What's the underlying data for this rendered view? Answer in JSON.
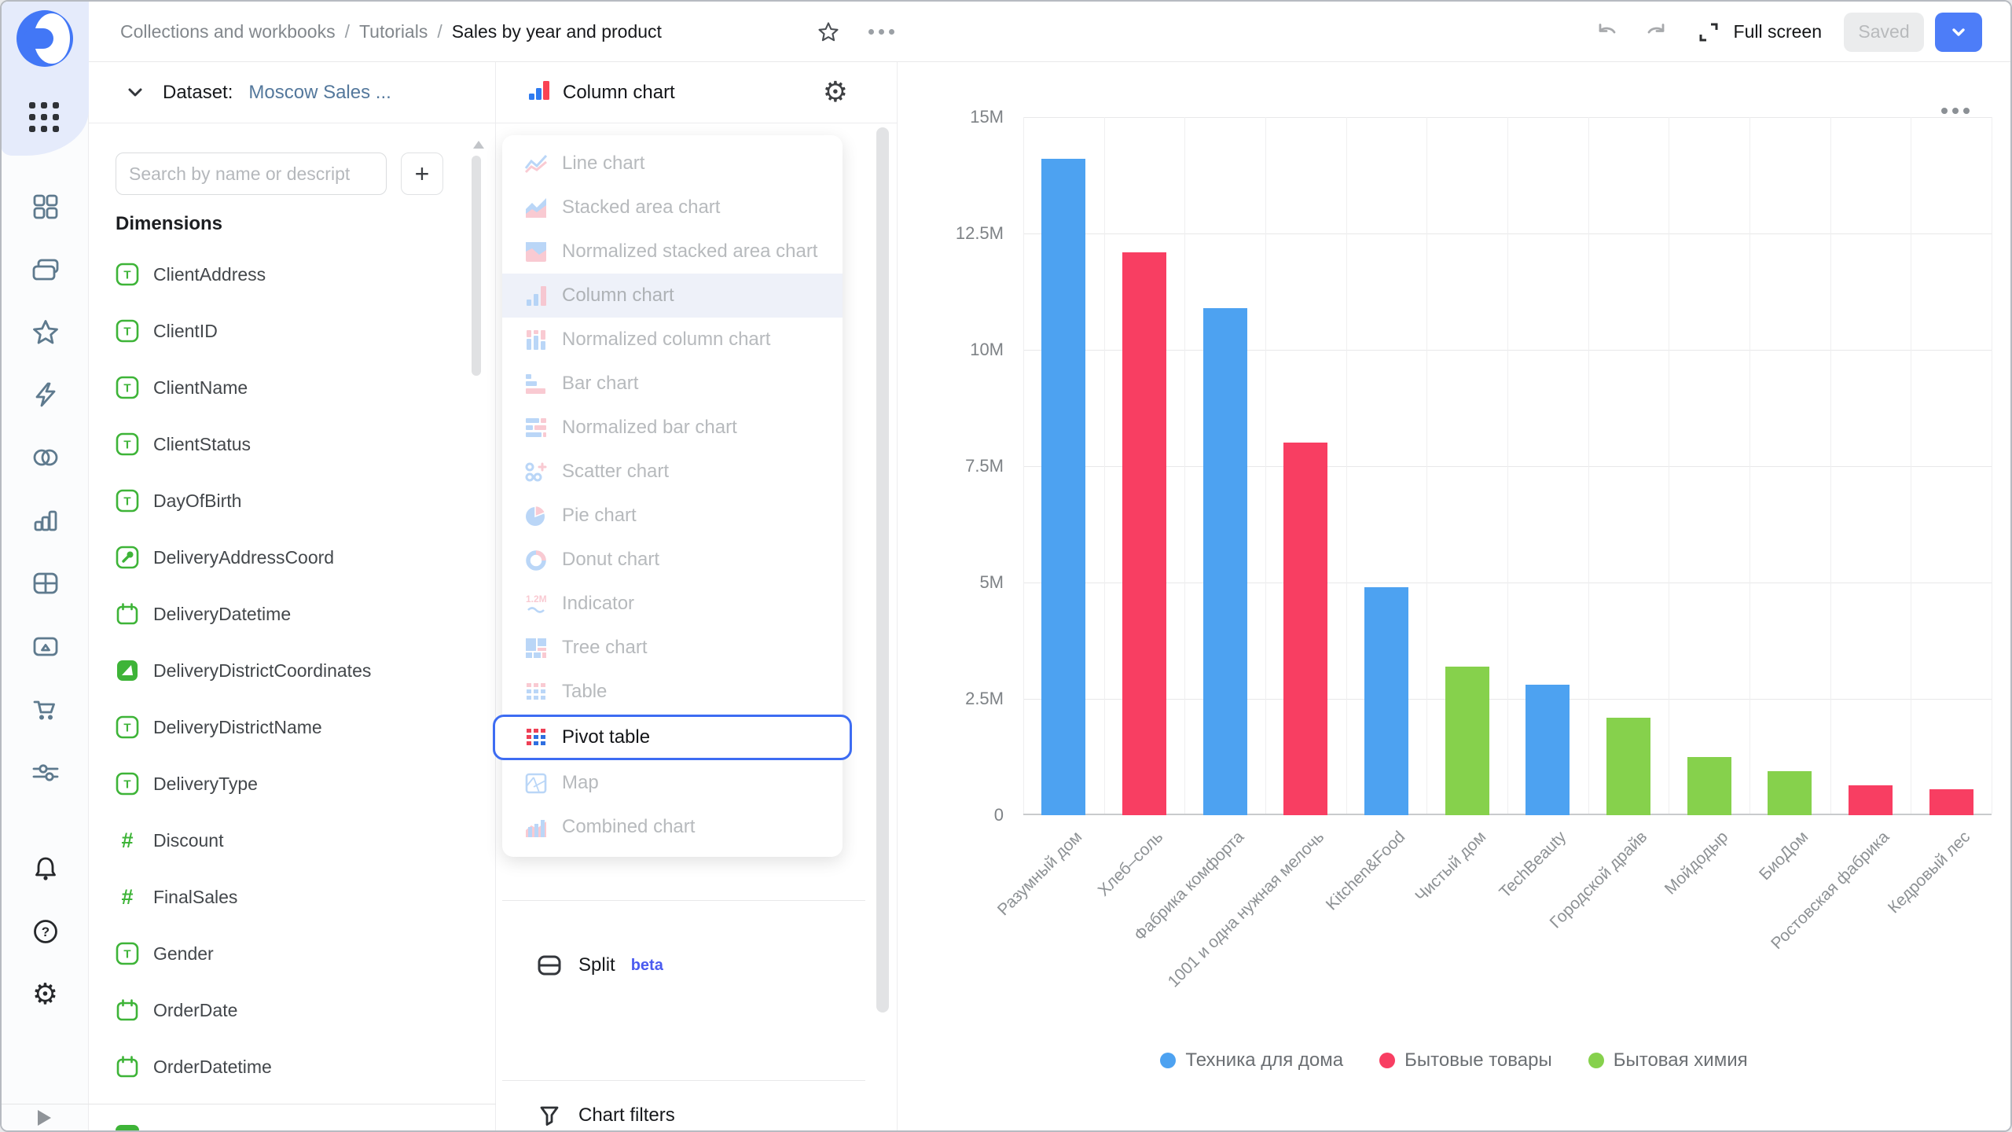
{
  "header": {
    "breadcrumbs": [
      "Collections and workbooks",
      "Tutorials",
      "Sales by year and product"
    ],
    "actions": {
      "full_screen_label": "Full screen",
      "saved_label": "Saved"
    }
  },
  "sidebar": {
    "icons": [
      "datalens-logo",
      "apps-grid",
      "dashboards",
      "collections",
      "favorites",
      "lightning",
      "venn-circles",
      "bar-chart",
      "table-grid",
      "folder-media",
      "cart",
      "sliders",
      "bell",
      "help",
      "gear",
      "expand-play"
    ]
  },
  "dataset_panel": {
    "collapse_label": "Dataset:",
    "dataset_name": "Moscow Sales ...",
    "search_placeholder": "Search by name or descript",
    "add_button_label": "+",
    "dimensions_title": "Dimensions",
    "fields": [
      {
        "name": "ClientAddress",
        "type": "string"
      },
      {
        "name": "ClientID",
        "type": "string"
      },
      {
        "name": "ClientName",
        "type": "string"
      },
      {
        "name": "ClientStatus",
        "type": "string"
      },
      {
        "name": "DayOfBirth",
        "type": "string"
      },
      {
        "name": "DeliveryAddressCoord",
        "type": "geopoint"
      },
      {
        "name": "DeliveryDatetime",
        "type": "date"
      },
      {
        "name": "DeliveryDistrictCoordinates",
        "type": "geopolygon"
      },
      {
        "name": "DeliveryDistrictName",
        "type": "string"
      },
      {
        "name": "DeliveryType",
        "type": "string"
      },
      {
        "name": "Discount",
        "type": "number"
      },
      {
        "name": "FinalSales",
        "type": "number"
      },
      {
        "name": "Gender",
        "type": "string"
      },
      {
        "name": "OrderDate",
        "type": "date"
      },
      {
        "name": "OrderDatetime",
        "type": "date"
      }
    ]
  },
  "viz_panel": {
    "selected_chart": "Column chart",
    "menu": [
      {
        "label": "Line chart",
        "type": "line",
        "state": "muted"
      },
      {
        "label": "Stacked area chart",
        "type": "area",
        "state": "muted"
      },
      {
        "label": "Normalized stacked area chart",
        "type": "narea",
        "state": "muted"
      },
      {
        "label": "Column chart",
        "type": "column",
        "state": "selected"
      },
      {
        "label": "Normalized column chart",
        "type": "ncolumn",
        "state": "muted"
      },
      {
        "label": "Bar chart",
        "type": "bar",
        "state": "muted"
      },
      {
        "label": "Normalized bar chart",
        "type": "nbar",
        "state": "muted"
      },
      {
        "label": "Scatter chart",
        "type": "scatter",
        "state": "muted"
      },
      {
        "label": "Pie chart",
        "type": "pie",
        "state": "muted"
      },
      {
        "label": "Donut chart",
        "type": "donut",
        "state": "muted"
      },
      {
        "label": "Indicator",
        "type": "indicator",
        "state": "muted"
      },
      {
        "label": "Tree chart",
        "type": "tree",
        "state": "muted"
      },
      {
        "label": "Table",
        "type": "table",
        "state": "muted"
      },
      {
        "label": "Pivot table",
        "type": "pivot",
        "state": "focused"
      },
      {
        "label": "Map",
        "type": "map",
        "state": "muted"
      },
      {
        "label": "Combined chart",
        "type": "combined",
        "state": "muted"
      }
    ],
    "split_label": "Split",
    "split_badge": "beta",
    "chart_filters_label": "Chart filters"
  },
  "chart_data": {
    "type": "bar",
    "title": "",
    "xlabel": "",
    "ylabel": "",
    "categories": [
      "Разумный дом",
      "Хлеб–соль",
      "Фабрика комфорта",
      "1001 и одна нужная мелочь",
      "Kitchen&Food",
      "Чистый дом",
      "TechBeauty",
      "Городской драйв",
      "Мойдодыр",
      "БиоДом",
      "Ростовская фабрика",
      "Кедровый лес"
    ],
    "values": [
      14.1,
      12.1,
      10.9,
      8.0,
      4.9,
      3.2,
      2.8,
      2.1,
      1.25,
      0.95,
      0.65,
      0.55
    ],
    "value_unit": "M",
    "groups": [
      "Техника для дома",
      "Бытовые товары",
      "Техника для дома",
      "Бытовые товары",
      "Техника для дома",
      "Бытовая химия",
      "Техника для дома",
      "Бытовая химия",
      "Бытовая химия",
      "Бытовая химия",
      "Бытовые товары",
      "Бытовые товары"
    ],
    "legend": [
      {
        "label": "Техника для дома",
        "color": "#4da2f1"
      },
      {
        "label": "Бытовые товары",
        "color": "#f83e62"
      },
      {
        "label": "Бытовая химия",
        "color": "#86d14c"
      }
    ],
    "yticks": {
      "labels": [
        "15M",
        "12.5M",
        "10M",
        "7.5M",
        "5M",
        "2.5M",
        "0"
      ],
      "values": [
        15,
        12.5,
        10,
        7.5,
        5,
        2.5,
        0
      ]
    },
    "ylim": [
      0,
      15
    ],
    "grid": true,
    "legend_position": "bottom",
    "x_label_rotation": -45
  }
}
